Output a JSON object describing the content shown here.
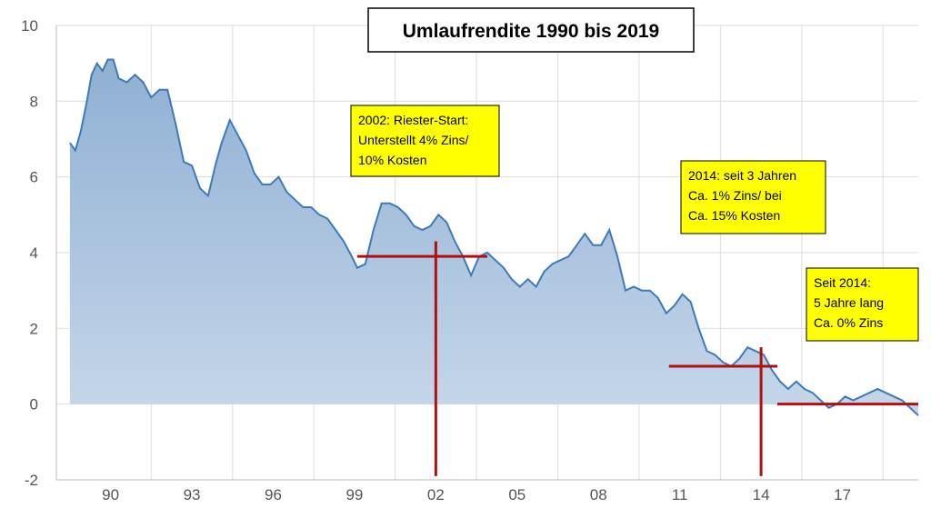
{
  "chart_data": {
    "type": "area",
    "title": "Umlaufrendite 1990 bis 2019",
    "xlabel": "",
    "ylabel": "",
    "xlim": [
      1988.0,
      2019.8
    ],
    "ylim": [
      -2,
      10
    ],
    "y_ticks": [
      -2,
      0,
      2,
      4,
      6,
      8,
      10
    ],
    "x_ticks": [
      {
        "label": "90",
        "value": 1990
      },
      {
        "label": "93",
        "value": 1993
      },
      {
        "label": "96",
        "value": 1996
      },
      {
        "label": "99",
        "value": 1999
      },
      {
        "label": "02",
        "value": 2002
      },
      {
        "label": "05",
        "value": 2005
      },
      {
        "label": "08",
        "value": 2008
      },
      {
        "label": "11",
        "value": 2011
      },
      {
        "label": "14",
        "value": 2014
      },
      {
        "label": "17",
        "value": 2017
      }
    ],
    "grid": true,
    "colors": {
      "line": "#3d7ab8",
      "fill_top": "#8fb0d3",
      "fill_bottom": "#c6d7ea",
      "grid": "#dddddd",
      "marker": "#b01010",
      "note_bg": "#ffff00"
    },
    "series": [
      {
        "x": [
          1988.5,
          1988.7,
          1988.9,
          1989.1,
          1989.3,
          1989.5,
          1989.7,
          1989.9,
          1990.1,
          1990.3,
          1990.6,
          1990.9,
          1991.2,
          1991.5,
          1991.8,
          1992.1,
          1992.4,
          1992.7,
          1993.0,
          1993.3,
          1993.6,
          1993.9,
          1994.1,
          1994.4,
          1994.7,
          1995.0,
          1995.3,
          1995.6,
          1995.9,
          1996.2,
          1996.5,
          1996.8,
          1997.1,
          1997.4,
          1997.7,
          1998.0,
          1998.3,
          1998.6,
          1998.9,
          1999.1,
          1999.4,
          1999.7,
          2000.0,
          2000.3,
          2000.6,
          2000.9,
          2001.2,
          2001.5,
          2001.8,
          2002.1,
          2002.4,
          2002.7,
          2003.0,
          2003.3,
          2003.6,
          2003.9,
          2004.2,
          2004.5,
          2004.8,
          2005.1,
          2005.4,
          2005.7,
          2006.0,
          2006.3,
          2006.6,
          2006.9,
          2007.2,
          2007.5,
          2007.8,
          2008.1,
          2008.4,
          2008.7,
          2009.0,
          2009.3,
          2009.6,
          2009.9,
          2010.2,
          2010.5,
          2010.8,
          2011.1,
          2011.4,
          2011.7,
          2012.0,
          2012.3,
          2012.6,
          2012.9,
          2013.2,
          2013.5,
          2013.8,
          2014.1,
          2014.4,
          2014.7,
          2015.0,
          2015.3,
          2015.6,
          2015.9,
          2016.2,
          2016.5,
          2016.8,
          2017.1,
          2017.4,
          2017.7,
          2018.0,
          2018.3,
          2018.6,
          2018.9,
          2019.2,
          2019.5,
          2019.8
        ],
        "values": [
          6.9,
          6.7,
          7.2,
          7.9,
          8.7,
          9.0,
          8.8,
          9.1,
          9.1,
          8.6,
          8.5,
          8.7,
          8.5,
          8.1,
          8.3,
          8.3,
          7.4,
          6.4,
          6.3,
          5.7,
          5.5,
          6.4,
          6.9,
          7.5,
          7.1,
          6.7,
          6.1,
          5.8,
          5.8,
          6.0,
          5.6,
          5.4,
          5.2,
          5.2,
          5.0,
          4.9,
          4.6,
          4.3,
          3.9,
          3.6,
          3.7,
          4.6,
          5.3,
          5.3,
          5.2,
          5.0,
          4.7,
          4.6,
          4.7,
          5.0,
          4.8,
          4.3,
          3.9,
          3.4,
          3.9,
          4.0,
          3.8,
          3.6,
          3.3,
          3.1,
          3.3,
          3.1,
          3.5,
          3.7,
          3.8,
          3.9,
          4.2,
          4.5,
          4.2,
          4.2,
          4.6,
          3.9,
          3.0,
          3.1,
          3.0,
          3.0,
          2.8,
          2.4,
          2.6,
          2.9,
          2.7,
          2.0,
          1.4,
          1.3,
          1.1,
          1.0,
          1.2,
          1.5,
          1.4,
          1.3,
          0.9,
          0.6,
          0.4,
          0.6,
          0.4,
          0.3,
          0.1,
          -0.1,
          0.0,
          0.2,
          0.1,
          0.2,
          0.3,
          0.4,
          0.3,
          0.2,
          0.1,
          -0.1,
          -0.3
        ]
      }
    ],
    "annotations": [
      {
        "name": "riester-note",
        "lines": [
          "2002: Riester-Start:",
          "Unterstellt 4% Zins/",
          "10% Kosten"
        ]
      },
      {
        "name": "2014-note",
        "lines": [
          "2014: seit 3 Jahren",
          "Ca. 1% Zins/ bei",
          "Ca. 15% Kosten"
        ]
      },
      {
        "name": "since-2014-note",
        "lines": [
          "Seit 2014:",
          "5 Jahre lang",
          "Ca. 0% Zins"
        ]
      }
    ],
    "markers": [
      {
        "name": "riester-level",
        "type": "hline",
        "y": 3.9,
        "x_from": 1999.1,
        "x_to": 2003.9
      },
      {
        "name": "riester-year",
        "type": "vline",
        "x": 2002.0,
        "y_from": 4.3,
        "y_to": -1.9
      },
      {
        "name": "2014-level",
        "type": "hline",
        "y": 1.0,
        "x_from": 2010.6,
        "x_to": 2014.6
      },
      {
        "name": "2014-year",
        "type": "vline",
        "x": 2014.0,
        "y_from": 1.5,
        "y_to": -1.9
      },
      {
        "name": "zero-level",
        "type": "hline",
        "y": 0.0,
        "x_from": 2014.6,
        "x_to": 2019.8
      }
    ]
  }
}
